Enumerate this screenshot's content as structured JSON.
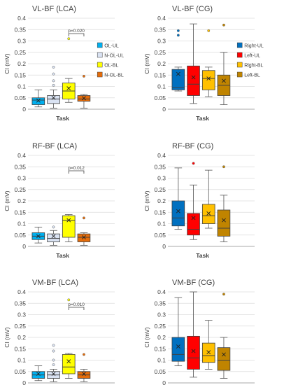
{
  "chart_data": [
    {
      "type": "box",
      "title": "VL-BF (LCA)",
      "xlabel": "Task",
      "ylabel": "CI (mV)",
      "ylim": [
        0,
        0.4
      ],
      "yticks": [
        "0",
        "0.05",
        "0.1",
        "0.15",
        "0.2",
        "0.25",
        "0.3",
        "0.35",
        "0.4"
      ],
      "legend_position": "right",
      "annotation": "p=0.020",
      "series": [
        {
          "name": "OL-UL",
          "color": "#00B0F0",
          "whisker_low": 0.01,
          "q1": 0.02,
          "median": 0.04,
          "q3": 0.05,
          "whisker_high": 0.085,
          "mean": 0.038,
          "outliers": []
        },
        {
          "name": "N-OL-UL",
          "color": "#DAE3F3",
          "whisker_low": 0.005,
          "q1": 0.025,
          "median": 0.045,
          "q3": 0.06,
          "whisker_high": 0.085,
          "mean": 0.05,
          "outliers": [
            0.105,
            0.125,
            0.155,
            0.185
          ]
        },
        {
          "name": "OL-BL",
          "color": "#FFFF00",
          "whisker_low": 0.03,
          "q1": 0.045,
          "median": 0.08,
          "q3": 0.115,
          "whisker_high": 0.135,
          "mean": 0.092,
          "outliers": [
            0.31
          ]
        },
        {
          "name": "N-OL-BL",
          "color": "#E46C0A",
          "whisker_low": 0.005,
          "q1": 0.035,
          "median": 0.045,
          "q3": 0.06,
          "whisker_high": 0.065,
          "mean": 0.048,
          "outliers": [
            0.145
          ]
        }
      ]
    },
    {
      "type": "box",
      "title": "VL-BF (CG)",
      "xlabel": "Task",
      "ylabel": "CI (mV)",
      "ylim": [
        0,
        0.4
      ],
      "yticks": [
        "0",
        "0.05",
        "0.1",
        "0.15",
        "0.2",
        "0.25",
        "0.3",
        "0.35",
        "0.4"
      ],
      "legend_position": "right",
      "series": [
        {
          "name": "Right-UL",
          "color": "#0070C0",
          "whisker_low": 0.08,
          "q1": 0.085,
          "median": 0.095,
          "q3": 0.175,
          "whisker_high": 0.185,
          "mean": 0.155,
          "outliers": [
            0.325,
            0.345
          ]
        },
        {
          "name": "Left-UL",
          "color": "#FF0000",
          "whisker_low": 0.025,
          "q1": 0.06,
          "median": 0.11,
          "q3": 0.19,
          "whisker_high": 0.375,
          "mean": 0.14,
          "outliers": []
        },
        {
          "name": "Right-BL",
          "color": "#FFC000",
          "whisker_low": 0.055,
          "q1": 0.085,
          "median": 0.135,
          "q3": 0.17,
          "whisker_high": 0.185,
          "mean": 0.135,
          "outliers": [
            0.345
          ]
        },
        {
          "name": "Left-BL",
          "color": "#C08400",
          "whisker_low": 0.02,
          "q1": 0.06,
          "median": 0.105,
          "q3": 0.15,
          "whisker_high": 0.25,
          "mean": 0.125,
          "outliers": [
            0.37
          ]
        }
      ]
    },
    {
      "type": "box",
      "title": "RF-BF (LCA)",
      "xlabel": "Task",
      "ylabel": "CI (mV)",
      "ylim": [
        0,
        0.4
      ],
      "yticks": [
        "0",
        "0.05",
        "0.1",
        "0.15",
        "0.2",
        "0.25",
        "0.3",
        "0.35",
        "0.4"
      ],
      "annotation": "p=0.012",
      "series": [
        {
          "name": "OL-UL",
          "color": "#00B0F0",
          "whisker_low": 0.015,
          "q1": 0.03,
          "median": 0.045,
          "q3": 0.06,
          "whisker_high": 0.085,
          "mean": 0.045,
          "outliers": []
        },
        {
          "name": "N-OL-UL",
          "color": "#DAE3F3",
          "whisker_low": 0.005,
          "q1": 0.02,
          "median": 0.035,
          "q3": 0.055,
          "whisker_high": 0.07,
          "mean": 0.045,
          "outliers": [
            0.085
          ]
        },
        {
          "name": "OL-BL",
          "color": "#FFFF00",
          "whisker_low": 0.02,
          "q1": 0.04,
          "median": 0.115,
          "q3": 0.135,
          "whisker_high": 0.14,
          "mean": 0.115,
          "outliers": []
        },
        {
          "name": "N-OL-BL",
          "color": "#E46C0A",
          "whisker_low": 0.005,
          "q1": 0.02,
          "median": 0.04,
          "q3": 0.055,
          "whisker_high": 0.06,
          "mean": 0.04,
          "outliers": [
            0.125
          ]
        }
      ]
    },
    {
      "type": "box",
      "title": "RF-BF (CG)",
      "xlabel": "Task",
      "ylabel": "CI (mV)",
      "ylim": [
        0,
        0.4
      ],
      "yticks": [
        "0",
        "0.05",
        "0.1",
        "0.15",
        "0.2",
        "0.25",
        "0.3",
        "0.35",
        "0.4"
      ],
      "series": [
        {
          "name": "Right-UL",
          "color": "#0070C0",
          "whisker_low": 0.075,
          "q1": 0.09,
          "median": 0.125,
          "q3": 0.2,
          "whisker_high": 0.345,
          "mean": 0.155,
          "outliers": []
        },
        {
          "name": "Left-UL",
          "color": "#FF0000",
          "whisker_low": 0.03,
          "q1": 0.05,
          "median": 0.075,
          "q3": 0.145,
          "whisker_high": 0.27,
          "mean": 0.125,
          "outliers": [
            0.365
          ]
        },
        {
          "name": "Right-BL",
          "color": "#FFC000",
          "whisker_low": 0.08,
          "q1": 0.1,
          "median": 0.135,
          "q3": 0.185,
          "whisker_high": 0.335,
          "mean": 0.145,
          "outliers": []
        },
        {
          "name": "Left-BL",
          "color": "#C08400",
          "whisker_low": 0.02,
          "q1": 0.045,
          "median": 0.08,
          "q3": 0.16,
          "whisker_high": 0.225,
          "mean": 0.115,
          "outliers": [
            0.35
          ]
        }
      ]
    },
    {
      "type": "box",
      "title": "VM-BF (LCA)",
      "xlabel": "Task",
      "ylabel": "CI (mV)",
      "ylim": [
        0,
        0.4
      ],
      "yticks": [
        "0",
        "0.05",
        "0.1",
        "0.15",
        "0.2",
        "0.25",
        "0.3",
        "0.35",
        "0.4"
      ],
      "annotation": "p=0.010",
      "series": [
        {
          "name": "OL-UL",
          "color": "#00B0F0",
          "whisker_low": 0.01,
          "q1": 0.02,
          "median": 0.035,
          "q3": 0.05,
          "whisker_high": 0.075,
          "mean": 0.04,
          "outliers": []
        },
        {
          "name": "N-OL-UL",
          "color": "#DAE3F3",
          "whisker_low": 0.005,
          "q1": 0.02,
          "median": 0.035,
          "q3": 0.05,
          "whisker_high": 0.06,
          "mean": 0.04,
          "outliers": [
            0.08,
            0.1,
            0.14,
            0.165
          ]
        },
        {
          "name": "OL-BL",
          "color": "#FFFF00",
          "whisker_low": 0.02,
          "q1": 0.04,
          "median": 0.07,
          "q3": 0.125,
          "whisker_high": 0.13,
          "mean": 0.095,
          "outliers": [
            0.365
          ]
        },
        {
          "name": "N-OL-BL",
          "color": "#E46C0A",
          "whisker_low": 0.005,
          "q1": 0.02,
          "median": 0.035,
          "q3": 0.05,
          "whisker_high": 0.06,
          "mean": 0.04,
          "outliers": [
            0.125
          ]
        }
      ]
    },
    {
      "type": "box",
      "title": "VM-BF (CG)",
      "xlabel": "Task",
      "ylabel": "CI (mV)",
      "ylim": [
        0,
        0.4
      ],
      "yticks": [
        "0",
        "0.05",
        "0.1",
        "0.15",
        "0.2",
        "0.25",
        "0.3",
        "0.35",
        "0.4"
      ],
      "series": [
        {
          "name": "Right-UL",
          "color": "#0070C0",
          "whisker_low": 0.075,
          "q1": 0.095,
          "median": 0.125,
          "q3": 0.2,
          "whisker_high": 0.375,
          "mean": 0.16,
          "outliers": []
        },
        {
          "name": "Left-UL",
          "color": "#FF0000",
          "whisker_low": 0.025,
          "q1": 0.06,
          "median": 0.11,
          "q3": 0.205,
          "whisker_high": 0.4,
          "mean": 0.14,
          "outliers": []
        },
        {
          "name": "Right-BL",
          "color": "#FFC000",
          "whisker_low": 0.06,
          "q1": 0.09,
          "median": 0.12,
          "q3": 0.175,
          "whisker_high": 0.275,
          "mean": 0.135,
          "outliers": []
        },
        {
          "name": "Left-BL",
          "color": "#C08400",
          "whisker_low": 0.02,
          "q1": 0.055,
          "median": 0.1,
          "q3": 0.155,
          "whisker_high": 0.2,
          "mean": 0.125,
          "outliers": [
            0.39
          ]
        }
      ]
    }
  ]
}
